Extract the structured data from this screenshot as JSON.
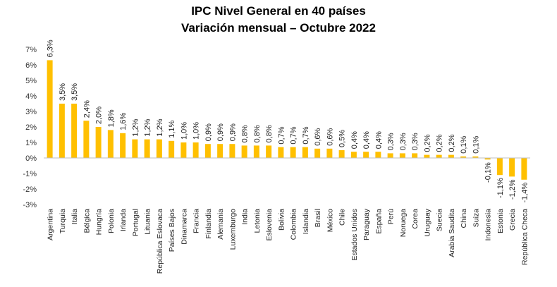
{
  "chart_data": {
    "type": "bar",
    "title": "IPC Nivel General en 40 países",
    "subtitle": "Variación mensual – Octubre 2022",
    "xlabel": "",
    "ylabel": "",
    "ylim": [
      -3,
      7
    ],
    "yticks": [
      "7%",
      "6%",
      "5%",
      "4%",
      "3%",
      "2%",
      "1%",
      "0%",
      "-1%",
      "-2%",
      "-3%"
    ],
    "ytick_values": [
      7,
      6,
      5,
      4,
      3,
      2,
      1,
      0,
      -1,
      -2,
      -3
    ],
    "grid": false,
    "legend": "none",
    "bar_color": "#FFC000",
    "categories": [
      "Argentina",
      "Turquia",
      "Italia",
      "Bélgica",
      "Hungría",
      "Polonia",
      "Irlanda",
      "Portugal",
      "Lituania",
      "República Eslovaca",
      "Países Bajos",
      "Dinamarca",
      "Francia",
      "Finlandia",
      "Alemania",
      "Luxemburgo",
      "India",
      "Letonia",
      "Eslovenia",
      "Bolivia",
      "Colombia",
      "Islandia",
      "Brasil",
      "México",
      "Chile",
      "Estados Unidos",
      "Paraguay",
      "España",
      "Perú",
      "Noruega",
      "Corea",
      "Uruguay",
      "Suecia",
      "Arabia Saudita",
      "China",
      "Suiza",
      "Indonesia",
      "Estonia",
      "Grecia",
      "República Checa"
    ],
    "values": [
      6.3,
      3.5,
      3.5,
      2.4,
      2.0,
      1.8,
      1.6,
      1.2,
      1.2,
      1.2,
      1.1,
      1.0,
      1.0,
      0.9,
      0.9,
      0.9,
      0.8,
      0.8,
      0.8,
      0.7,
      0.7,
      0.7,
      0.6,
      0.6,
      0.5,
      0.4,
      0.4,
      0.4,
      0.3,
      0.3,
      0.3,
      0.2,
      0.2,
      0.2,
      0.1,
      0.1,
      -0.1,
      -1.1,
      -1.2,
      -1.4
    ],
    "labels": [
      "6,3%",
      "3,5%",
      "3,5%",
      "2,4%",
      "2,0%",
      "1,8%",
      "1,6%",
      "1,2%",
      "1,2%",
      "1,2%",
      "1,1%",
      "1,0%",
      "1,0%",
      "0,9%",
      "0,9%",
      "0,9%",
      "0,8%",
      "0,8%",
      "0,8%",
      "0,7%",
      "0,7%",
      "0,7%",
      "0,6%",
      "0,6%",
      "0,5%",
      "0,4%",
      "0,4%",
      "0,4%",
      "0,3%",
      "0,3%",
      "0,3%",
      "0,2%",
      "0,2%",
      "0,2%",
      "0,1%",
      "0,1%",
      "-0,1%",
      "-1,1%",
      "-1,2%",
      "-1,4%"
    ]
  }
}
